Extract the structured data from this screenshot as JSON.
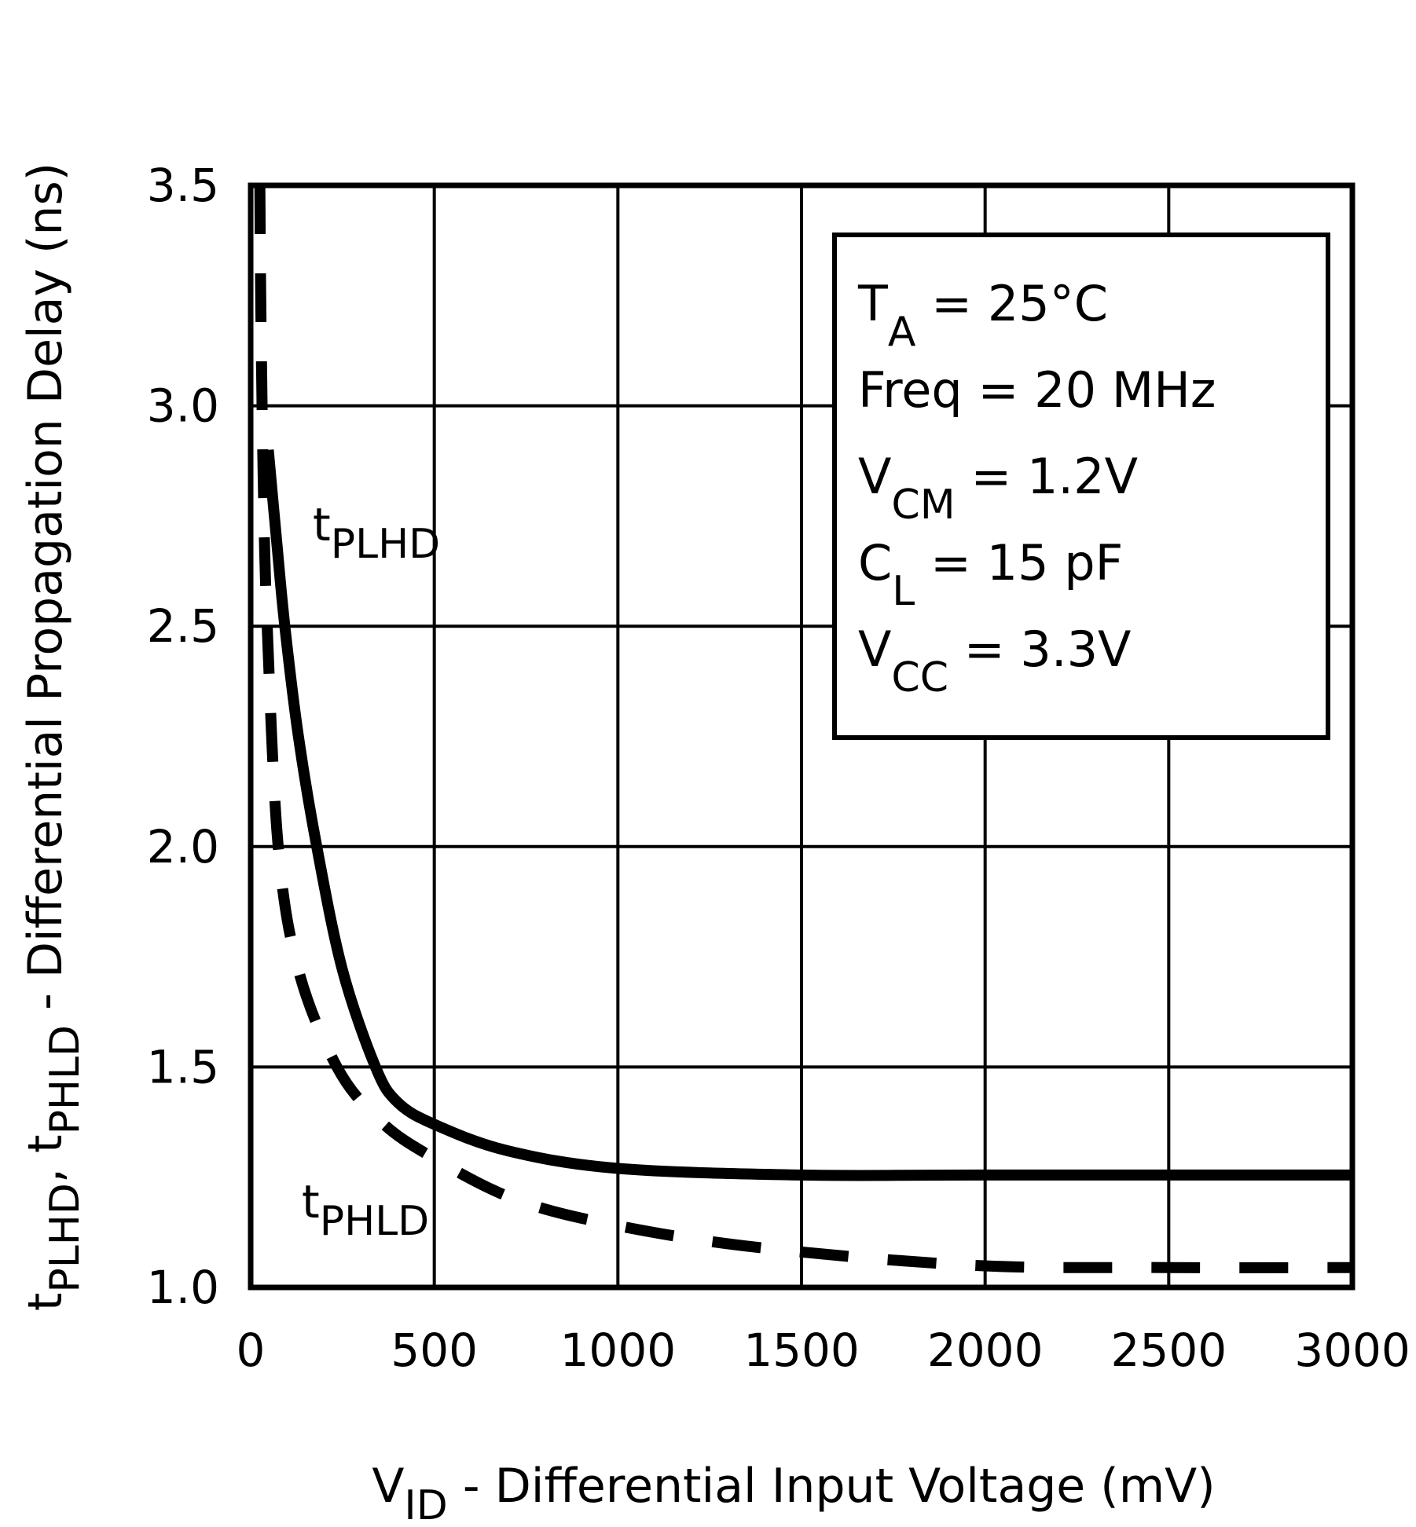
{
  "chart_data": {
    "type": "line",
    "xlabel": "V_ID - Differential Input Voltage (mV)",
    "xlabel_main": "V",
    "xlabel_sub": "ID",
    "xlabel_rest": " - Differential Input Voltage (mV)",
    "ylabel": "t_PLHD, t_PHLD - Differential Propagation Delay (ns)",
    "ylabel_parts": [
      "t",
      "PLHD",
      ", t",
      "PHLD",
      " - Differential Propagation Delay (ns)"
    ],
    "xlim": [
      0,
      3000
    ],
    "ylim": [
      1.0,
      3.5
    ],
    "xticks": [
      "0",
      "500",
      "1000",
      "1500",
      "2000",
      "2500",
      "3000"
    ],
    "yticks": [
      "1.0",
      "1.5",
      "2.0",
      "2.5",
      "3.0",
      "3.5"
    ],
    "grid": true,
    "series": [
      {
        "name": "tPLHD",
        "label_main": "t",
        "label_sub": "PLHD",
        "style": "solid",
        "x": [
          48,
          70,
          93,
          130,
          180,
          250,
          340,
          400,
          500,
          700,
          1000,
          1500,
          2000,
          3000
        ],
        "y": [
          2.9,
          2.7,
          2.5,
          2.25,
          2.0,
          1.72,
          1.5,
          1.42,
          1.37,
          1.31,
          1.27,
          1.255,
          1.255,
          1.255
        ]
      },
      {
        "name": "tPHLD",
        "label_main": "t",
        "label_sub": "PHLD",
        "style": "dashed",
        "x": [
          25,
          28,
          35,
          45,
          75,
          130,
          235,
          350,
          485,
          720,
          1000,
          1390,
          1970,
          2500,
          3000
        ],
        "y": [
          3.5,
          3.2,
          2.8,
          2.5,
          2.0,
          1.72,
          1.5,
          1.38,
          1.3,
          1.2,
          1.14,
          1.09,
          1.05,
          1.045,
          1.045
        ]
      }
    ],
    "annotation_box": [
      {
        "main": "T",
        "sub": "A",
        "value": " =  25°C"
      },
      {
        "main": "Freq",
        "sub": "",
        "value": "  =  20 MHz"
      },
      {
        "main": "V",
        "sub": "CM",
        "value": " =  1.2V"
      },
      {
        "main": "C",
        "sub": "L",
        "value": " =  15 pF"
      },
      {
        "main": "V",
        "sub": "CC",
        "value": " =  3.3V"
      }
    ],
    "legend": "inline labels"
  }
}
